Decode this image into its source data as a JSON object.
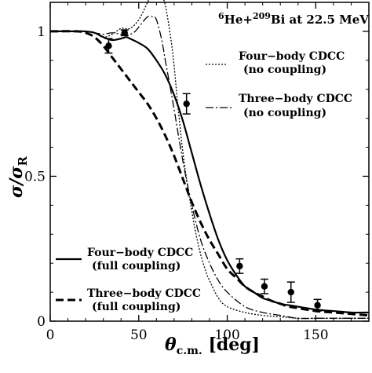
{
  "chart_data": {
    "type": "line",
    "title": "6He+209Bi at 22.5 MeV",
    "title_parts": {
      "sup1": "6",
      "base1": "He+",
      "sup2": "209",
      "base2": "Bi at 22.5 MeV"
    },
    "xlabel": "θc.m. [deg]",
    "xlabel_parts": {
      "main": "θ",
      "sub": "c.m.",
      "unit": " [deg]"
    },
    "ylabel": "σ/σR",
    "ylabel_parts": {
      "main": "σ/σ",
      "sub": "R"
    },
    "xlim": [
      0,
      180
    ],
    "ylim": [
      0,
      1.1
    ],
    "x_ticks": [
      0,
      50,
      100,
      150
    ],
    "x_tick_labels": [
      "0",
      "50",
      "100",
      "150"
    ],
    "y_ticks": [
      0,
      0.5,
      1
    ],
    "y_tick_labels": [
      "0",
      "0.5",
      "1"
    ],
    "grid": false,
    "series": [
      {
        "name": "Four-body CDCC (no coupling)",
        "style": "dotted",
        "x": [
          0,
          15,
          20,
          25,
          30,
          35,
          40,
          45,
          50,
          55,
          58,
          60,
          62,
          65,
          68,
          70,
          72,
          75,
          78,
          80,
          82,
          85,
          88,
          90,
          95,
          100,
          110,
          120,
          130,
          140,
          150,
          160,
          170,
          180
        ],
        "y": [
          1.0,
          1.0,
          1.0,
          0.995,
          0.98,
          0.99,
          1.01,
          1.01,
          1.04,
          1.1,
          1.14,
          1.15,
          1.14,
          1.09,
          0.98,
          0.88,
          0.75,
          0.58,
          0.45,
          0.38,
          0.31,
          0.23,
          0.17,
          0.14,
          0.08,
          0.05,
          0.03,
          0.02,
          0.015,
          0.01,
          0.01,
          0.01,
          0.01,
          0.01
        ]
      },
      {
        "name": "Three-body CDCC (no coupling)",
        "style": "dashdot",
        "x": [
          0,
          15,
          20,
          25,
          30,
          35,
          40,
          45,
          48,
          52,
          55,
          58,
          60,
          63,
          65,
          68,
          70,
          75,
          80,
          85,
          90,
          95,
          100,
          110,
          120,
          130,
          140,
          150,
          160,
          170,
          180
        ],
        "y": [
          1.0,
          1.0,
          1.0,
          0.995,
          0.99,
          0.995,
          0.99,
          0.99,
          1.0,
          1.03,
          1.05,
          1.05,
          1.04,
          0.97,
          0.9,
          0.8,
          0.73,
          0.55,
          0.4,
          0.28,
          0.2,
          0.14,
          0.1,
          0.05,
          0.03,
          0.02,
          0.01,
          0.01,
          0.01,
          0.01,
          0.01
        ]
      },
      {
        "name": "Four-body CDCC (full coupling)",
        "style": "solid",
        "x": [
          0,
          15,
          20,
          25,
          30,
          35,
          40,
          43,
          45,
          50,
          55,
          60,
          65,
          70,
          75,
          80,
          85,
          90,
          95,
          100,
          105,
          110,
          115,
          120,
          125,
          130,
          135,
          140,
          150,
          160,
          170,
          180
        ],
        "y": [
          1.0,
          1.0,
          1.0,
          0.995,
          0.98,
          0.97,
          0.975,
          0.98,
          0.975,
          0.96,
          0.94,
          0.9,
          0.85,
          0.78,
          0.69,
          0.58,
          0.47,
          0.37,
          0.28,
          0.21,
          0.16,
          0.12,
          0.1,
          0.08,
          0.07,
          0.06,
          0.055,
          0.05,
          0.04,
          0.035,
          0.03,
          0.03
        ]
      },
      {
        "name": "Three-body CDCC (full coupling)",
        "style": "dashed",
        "x": [
          0,
          15,
          20,
          25,
          30,
          35,
          40,
          45,
          50,
          55,
          60,
          65,
          70,
          75,
          80,
          85,
          90,
          95,
          100,
          105,
          110,
          115,
          120,
          125,
          130,
          135,
          140,
          150,
          160,
          170,
          180
        ],
        "y": [
          1.0,
          1.0,
          0.995,
          0.98,
          0.95,
          0.91,
          0.87,
          0.83,
          0.79,
          0.75,
          0.7,
          0.64,
          0.57,
          0.49,
          0.41,
          0.34,
          0.28,
          0.23,
          0.18,
          0.15,
          0.12,
          0.1,
          0.085,
          0.07,
          0.06,
          0.05,
          0.045,
          0.035,
          0.03,
          0.025,
          0.02
        ]
      }
    ],
    "experimental_points": [
      {
        "x": 33,
        "y": 0.95,
        "yerr": 0.025
      },
      {
        "x": 42,
        "y": 0.995,
        "yerr": 0.01
      },
      {
        "x": 77,
        "y": 0.75,
        "yerr": 0.035
      },
      {
        "x": 107,
        "y": 0.19,
        "yerr": 0.025
      },
      {
        "x": 121,
        "y": 0.12,
        "yerr": 0.025
      },
      {
        "x": 136,
        "y": 0.1,
        "yerr": 0.035
      },
      {
        "x": 151,
        "y": 0.055,
        "yerr": 0.02
      }
    ],
    "legend": [
      {
        "line1": "Four−body CDCC",
        "line2": "(no coupling)",
        "placement": "top-right"
      },
      {
        "line1": "Three−body CDCC",
        "line2": "(no coupling)",
        "placement": "right"
      },
      {
        "line1": "Four−body CDCC",
        "line2": "(full coupling)",
        "placement": "bottom-left"
      },
      {
        "line1": "Three−body CDCC",
        "line2": "(full coupling)",
        "placement": "bottom-left"
      }
    ]
  }
}
